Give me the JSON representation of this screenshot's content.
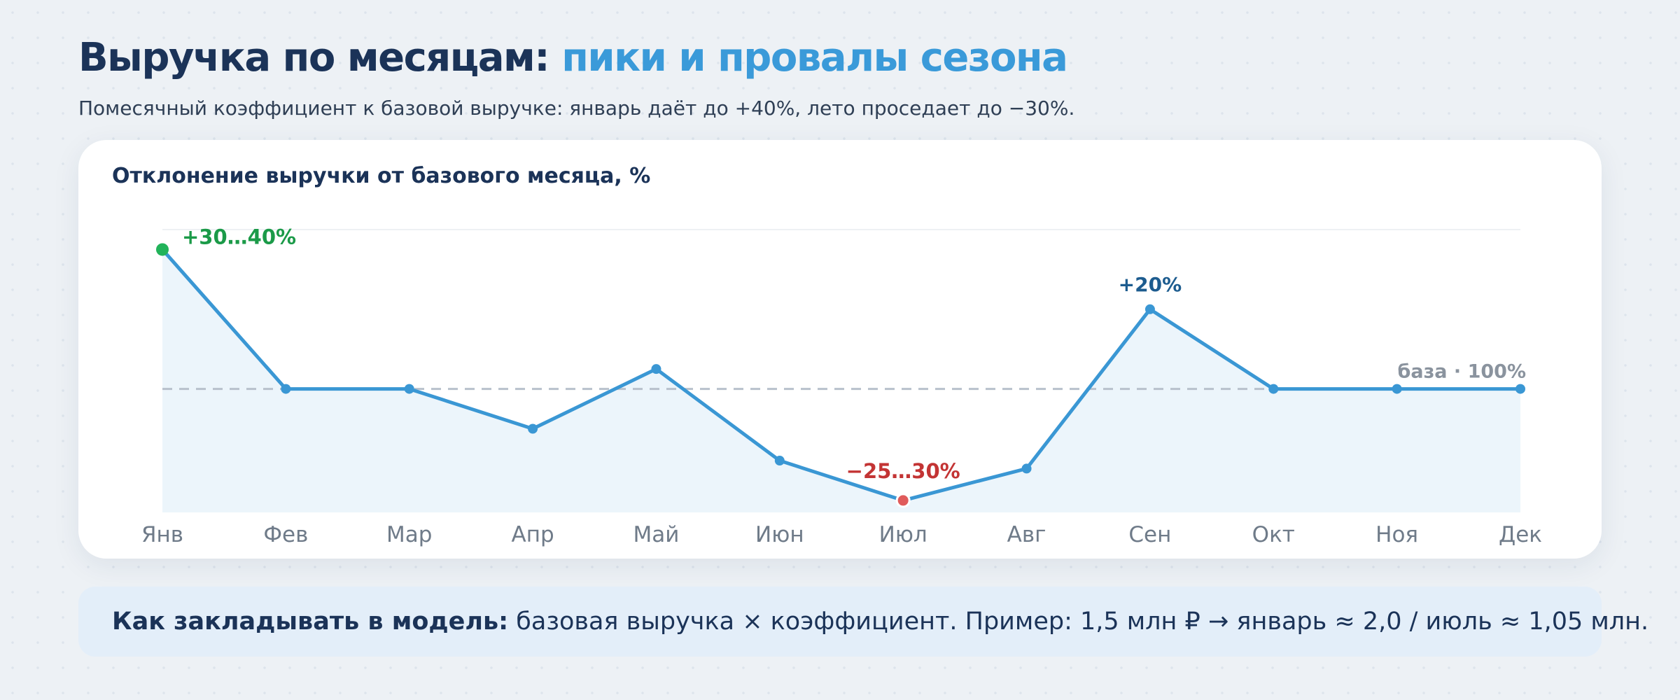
{
  "header": {
    "title_main": "Выручка по месяцам: ",
    "title_accent": "пики и провалы сезона",
    "subtitle": "Помесячный коэффициент к базовой выручке: январь даёт до +40%, лето проседает до −30%."
  },
  "note": {
    "label": "Как закладывать в модель:",
    "text": " базовая выручка × коэффициент. Пример: 1,5 млн ₽ → январь ≈ 2,0 / июль ≈ 1,05 млн."
  },
  "colors": {
    "line": "#3a97d4",
    "area": "#eaf4fb",
    "baseline": "#b8c1cc",
    "peak": "#22b35a",
    "trough": "#e05b5b",
    "sep_label": "#1d5c8f",
    "peak_label": "#1b9a48",
    "trough_label": "#c33434",
    "base_label": "#8a939e",
    "tick": "#6f7b89",
    "grid": "#eef1f4"
  },
  "chart_data": {
    "type": "line",
    "title": "Отклонение выручки от базового месяца, %",
    "categories": [
      "Янв",
      "Фев",
      "Мар",
      "Апр",
      "Май",
      "Июн",
      "Июл",
      "Авг",
      "Сен",
      "Окт",
      "Ноя",
      "Дек"
    ],
    "values": [
      35,
      0,
      0,
      -10,
      5,
      -18,
      -28,
      -20,
      20,
      0,
      0,
      0
    ],
    "ylim": [
      -31,
      40
    ],
    "baseline_value": 0,
    "grid": false,
    "annotations": [
      {
        "index": 0,
        "text": "+30…40%",
        "style": "peak"
      },
      {
        "index": 6,
        "text": "−25…30%",
        "style": "trough"
      },
      {
        "index": 8,
        "text": "+20%",
        "style": "sep"
      },
      {
        "index": 11,
        "text": "база · 100%",
        "style": "base"
      }
    ]
  }
}
